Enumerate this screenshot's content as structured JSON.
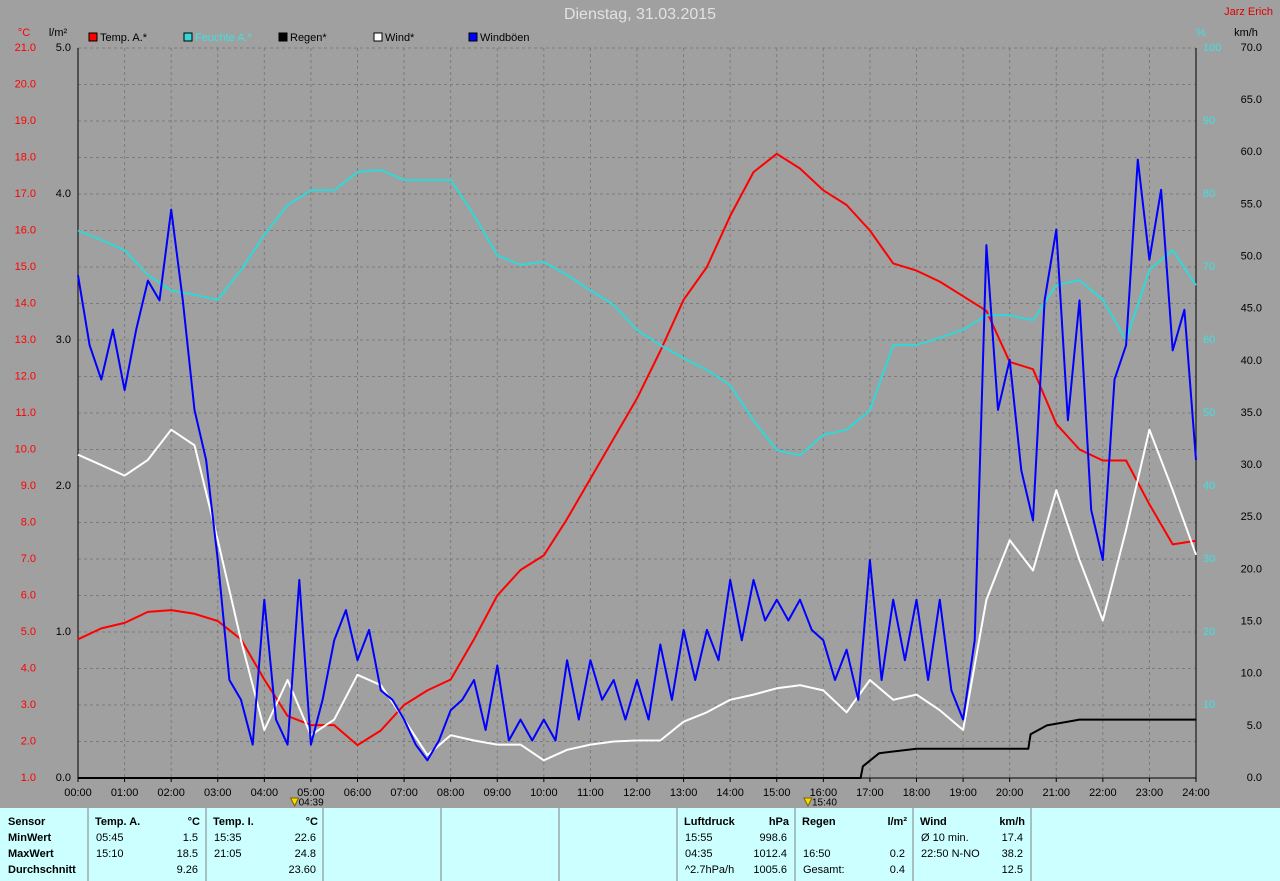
{
  "chart_data": {
    "type": "line",
    "title": "Dienstag, 31.03.2015",
    "author": "Jarz Erich",
    "y_label": "°C",
    "y2_label": "l/m²",
    "y3_label": "%",
    "y4_label": "km/h",
    "xlim": [
      0,
      24
    ],
    "xticks": [
      {
        "value": 0,
        "label": "00:00"
      },
      {
        "value": 1,
        "label": "01:00"
      },
      {
        "value": 2,
        "label": "02:00"
      },
      {
        "value": 3,
        "label": "03:00"
      },
      {
        "value": 4,
        "label": "04:00"
      },
      {
        "value": 5,
        "label": "05:00"
      },
      {
        "value": 6,
        "label": "06:00"
      },
      {
        "value": 7,
        "label": "07:00"
      },
      {
        "value": 8,
        "label": "08:00"
      },
      {
        "value": 9,
        "label": "09:00"
      },
      {
        "value": 10,
        "label": "10:00"
      },
      {
        "value": 11,
        "label": "11:00"
      },
      {
        "value": 12,
        "label": "12:00"
      },
      {
        "value": 13,
        "label": "13:00"
      },
      {
        "value": 14,
        "label": "14:00"
      },
      {
        "value": 15,
        "label": "15:00"
      },
      {
        "value": 16,
        "label": "16:00"
      },
      {
        "value": 17,
        "label": "17:00"
      },
      {
        "value": 18,
        "label": "18:00"
      },
      {
        "value": 19,
        "label": "19:00"
      },
      {
        "value": 20,
        "label": "20:00"
      },
      {
        "value": 21,
        "label": "21:00"
      },
      {
        "value": 22,
        "label": "22:00"
      },
      {
        "value": 23,
        "label": "23:00"
      },
      {
        "value": 24,
        "label": "24:00"
      }
    ],
    "ylim": [
      1,
      21
    ],
    "yticks": [
      {
        "value": 1,
        "label": "1.0"
      },
      {
        "value": 2,
        "label": "2.0"
      },
      {
        "value": 3,
        "label": "3.0"
      },
      {
        "value": 4,
        "label": "4.0"
      },
      {
        "value": 5,
        "label": "5.0"
      },
      {
        "value": 6,
        "label": "6.0"
      },
      {
        "value": 7,
        "label": "7.0"
      },
      {
        "value": 8,
        "label": "8.0"
      },
      {
        "value": 9,
        "label": "9.0"
      },
      {
        "value": 10,
        "label": "10.0"
      },
      {
        "value": 11,
        "label": "11.0"
      },
      {
        "value": 12,
        "label": "12.0"
      },
      {
        "value": 13,
        "label": "13.0"
      },
      {
        "value": 14,
        "label": "14.0"
      },
      {
        "value": 15,
        "label": "15.0"
      },
      {
        "value": 16,
        "label": "16.0"
      },
      {
        "value": 17,
        "label": "17.0"
      },
      {
        "value": 18,
        "label": "18.0"
      },
      {
        "value": 19,
        "label": "19.0"
      },
      {
        "value": 20,
        "label": "20.0"
      },
      {
        "value": 21,
        "label": "21.0"
      }
    ],
    "y2lim": [
      0,
      5
    ],
    "y2ticks": [
      {
        "value": 0,
        "label": "0.0"
      },
      {
        "value": 1,
        "label": "1.0"
      },
      {
        "value": 2,
        "label": "2.0"
      },
      {
        "value": 3,
        "label": "3.0"
      },
      {
        "value": 4,
        "label": "4.0"
      },
      {
        "value": 5,
        "label": "5.0"
      }
    ],
    "y3lim": [
      0,
      100
    ],
    "y3ticks": [
      10,
      20,
      30,
      40,
      50,
      60,
      70,
      80,
      90,
      100
    ],
    "y4lim": [
      0,
      70
    ],
    "y4ticks": [
      {
        "value": 0,
        "label": "0.0"
      },
      {
        "value": 5,
        "label": "5.0"
      },
      {
        "value": 10,
        "label": "10.0"
      },
      {
        "value": 15,
        "label": "15.0"
      },
      {
        "value": 20,
        "label": "20.0"
      },
      {
        "value": 25,
        "label": "25.0"
      },
      {
        "value": 30,
        "label": "30.0"
      },
      {
        "value": 35,
        "label": "35.0"
      },
      {
        "value": 40,
        "label": "40.0"
      },
      {
        "value": 45,
        "label": "45.0"
      },
      {
        "value": 50,
        "label": "50.0"
      },
      {
        "value": 55,
        "label": "55.0"
      },
      {
        "value": 60,
        "label": "60.0"
      },
      {
        "value": 65,
        "label": "65.0"
      },
      {
        "value": 70,
        "label": "70.0"
      }
    ],
    "grid": true,
    "x": [
      0,
      0.5,
      1,
      1.5,
      2,
      2.5,
      3,
      3.5,
      4,
      4.5,
      5,
      5.5,
      6,
      6.5,
      7,
      7.5,
      8,
      8.5,
      9,
      9.5,
      10,
      10.5,
      11,
      11.5,
      12,
      12.5,
      13,
      13.5,
      14,
      14.5,
      15,
      15.5,
      16,
      16.5,
      17,
      17.5,
      18,
      18.5,
      19,
      19.5,
      20,
      20.5,
      21,
      21.5,
      22,
      22.5,
      23,
      23.5,
      24
    ],
    "series": [
      {
        "name": "Temp. A.*",
        "color": "#ff0000",
        "axis": "y",
        "values": [
          4.8,
          5.1,
          5.25,
          5.55,
          5.6,
          5.5,
          5.3,
          4.8,
          3.7,
          2.7,
          2.45,
          2.45,
          1.9,
          2.3,
          3.0,
          3.4,
          3.7,
          4.8,
          6.0,
          6.7,
          7.1,
          8.1,
          9.2,
          10.3,
          11.4,
          12.7,
          14.1,
          15.0,
          16.4,
          17.6,
          18.1,
          17.7,
          17.1,
          16.7,
          16.0,
          15.1,
          14.9,
          14.6,
          14.2,
          13.8,
          12.4,
          12.2,
          10.7,
          10.0,
          9.7,
          9.7,
          8.5,
          7.4,
          7.5
        ]
      },
      {
        "name": "Feuchte A.*",
        "color": "#30d8d8",
        "axis": "y3",
        "values": [
          75,
          73.7,
          72.3,
          68.9,
          66.8,
          66.2,
          65.5,
          69.6,
          74.4,
          78.5,
          80.5,
          80.5,
          83,
          83.3,
          81.9,
          81.9,
          81.9,
          77.1,
          71.6,
          70.3,
          70.7,
          68.9,
          66.8,
          64.8,
          61.4,
          59.3,
          57.5,
          55.9,
          53.8,
          49,
          44.9,
          44.2,
          47,
          47.7,
          50.4,
          59.3,
          59.3,
          60.3,
          61.4,
          63.4,
          63.4,
          62.7,
          67.5,
          68.2,
          65.5,
          60,
          69.6,
          72.3,
          67.5
        ]
      },
      {
        "name": "Regen*",
        "color": "#000000",
        "axis": "y2",
        "x": [
          0,
          16.8,
          16.85,
          17.2,
          18,
          20.4,
          20.45,
          20.8,
          21.5,
          24
        ],
        "values": [
          0,
          0,
          0.08,
          0.17,
          0.2,
          0.2,
          0.3,
          0.36,
          0.4,
          0.4
        ]
      },
      {
        "name": "Wind*",
        "color": "#ffffff",
        "axis": "y4",
        "values": [
          31,
          30,
          29,
          30.5,
          33.4,
          31.9,
          22.8,
          13.2,
          4.6,
          9.4,
          4.1,
          5.6,
          9.9,
          8.9,
          5.6,
          2.2,
          4.1,
          3.6,
          3.2,
          3.2,
          1.7,
          2.7,
          3.2,
          3.5,
          3.6,
          3.6,
          5.4,
          6.3,
          7.5,
          8.0,
          8.6,
          8.9,
          8.4,
          6.3,
          9.4,
          7.5,
          8,
          6.5,
          4.6,
          17.1,
          22.8,
          19.9,
          27.6,
          20.9,
          15.1,
          23.8,
          33.4,
          27.6,
          21.4
        ]
      },
      {
        "name": "Windböen",
        "color": "#0000ff",
        "axis": "y4",
        "x": [
          0,
          0.25,
          0.5,
          0.75,
          1,
          1.25,
          1.5,
          1.75,
          2,
          2.25,
          2.5,
          2.75,
          3,
          3.25,
          3.5,
          3.75,
          4,
          4.25,
          4.5,
          4.75,
          5,
          5.25,
          5.5,
          5.75,
          6,
          6.25,
          6.5,
          6.75,
          7,
          7.25,
          7.5,
          7.75,
          8,
          8.25,
          8.5,
          8.75,
          9,
          9.25,
          9.5,
          9.75,
          10,
          10.25,
          10.5,
          10.75,
          11,
          11.25,
          11.5,
          11.75,
          12,
          12.25,
          12.5,
          12.75,
          13,
          13.25,
          13.5,
          13.75,
          14,
          14.25,
          14.5,
          14.75,
          15,
          15.25,
          15.5,
          15.75,
          16,
          16.25,
          16.5,
          16.75,
          17,
          17.25,
          17.5,
          17.75,
          18,
          18.25,
          18.5,
          18.75,
          19,
          19.25,
          19.5,
          19.75,
          20,
          20.25,
          20.5,
          20.75,
          21,
          21.25,
          21.5,
          21.75,
          22,
          22.25,
          22.5,
          22.75,
          23,
          23.25,
          23.5,
          23.75,
          24
        ],
        "values": [
          48.2,
          41.5,
          38.2,
          43,
          37.2,
          43,
          47.7,
          45.8,
          54.5,
          45.8,
          35.3,
          30.5,
          20.9,
          9.4,
          7.5,
          3.2,
          17.1,
          5.6,
          3.2,
          19,
          3.2,
          7.5,
          13.2,
          16.1,
          11.3,
          14.2,
          8.4,
          7.5,
          5.6,
          3.2,
          1.7,
          3.6,
          6.5,
          7.5,
          9.4,
          4.6,
          10.8,
          3.6,
          5.6,
          3.6,
          5.6,
          3.6,
          11.3,
          5.6,
          11.3,
          7.5,
          9.4,
          5.6,
          9.4,
          5.6,
          12.8,
          7.5,
          14.2,
          9.4,
          14.2,
          11.3,
          19,
          13.2,
          19,
          15.1,
          17.1,
          15.1,
          17.1,
          14.2,
          13.2,
          9.4,
          12.3,
          7.5,
          20.9,
          9.4,
          17.1,
          11.3,
          17.1,
          9.4,
          17.1,
          8.4,
          5.6,
          13.2,
          51.1,
          35.3,
          40.1,
          29.5,
          24.7,
          45.8,
          52.6,
          34.3,
          45.8,
          25.7,
          20.9,
          38.2,
          41.5,
          59.3,
          49.7,
          56.4,
          41,
          44.9,
          30.5
        ]
      }
    ],
    "annotations": [
      {
        "x": 4.65,
        "label": "04:39"
      },
      {
        "x": 15.67,
        "label": "15:40"
      }
    ],
    "stats": {
      "row_labels": [
        "Sensor",
        "MinWert",
        "MaxWert",
        "Durchschnitt"
      ],
      "columns": [
        {
          "name": "Temp. A.",
          "unit": "°C",
          "min": [
            "05:45",
            "1.5"
          ],
          "max": [
            "15:10",
            "18.5"
          ],
          "avg": "9.26"
        },
        {
          "name": "Temp. I.",
          "unit": "°C",
          "min": [
            "15:35",
            "22.6"
          ],
          "max": [
            "21:05",
            "24.8"
          ],
          "avg": "23.60"
        },
        {
          "name": "Luftdruck",
          "unit": "hPa",
          "min": [
            "15:55",
            "998.6"
          ],
          "max": [
            "04:35",
            "1012.4"
          ],
          "avg": [
            "^2.7hPa/h",
            "1005.6"
          ]
        },
        {
          "name": "Regen",
          "unit": "l/m²",
          "max": [
            "16:50",
            "0.2"
          ],
          "avg": [
            "Gesamt:",
            "0.4"
          ]
        },
        {
          "name": "Wind",
          "unit": "km/h",
          "min": [
            "Ø 10 min.",
            "17.4"
          ],
          "max": [
            "22:50 N-NO",
            "38.2"
          ],
          "avg": "12.5"
        }
      ]
    }
  }
}
